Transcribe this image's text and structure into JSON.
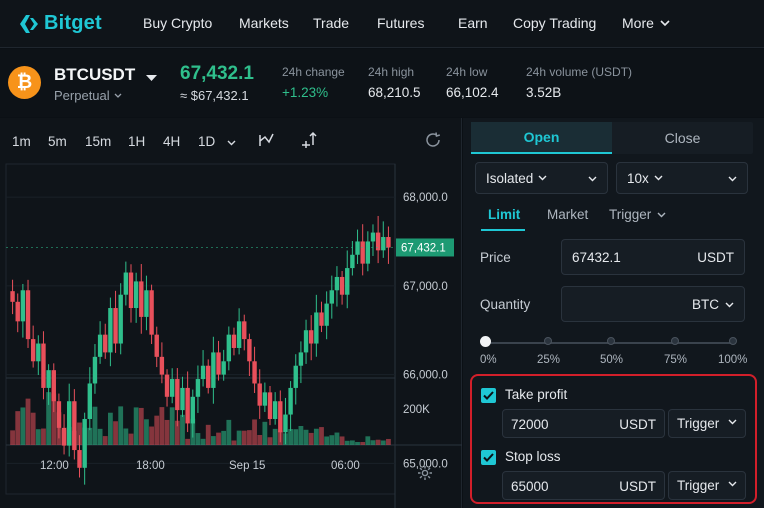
{
  "nav": {
    "logo_text": "Bitget",
    "items": [
      "Buy Crypto",
      "Markets",
      "Trade",
      "Futures",
      "Earn",
      "Copy Trading",
      "More"
    ]
  },
  "ticker": {
    "coin_glyph": "₿",
    "pair": "BTCUSDT",
    "contract": "Perpetual",
    "last_price": "67,432.1",
    "approx_price": "≈ $67,432.1",
    "stats": [
      {
        "label": "24h change",
        "value": "+1.23%",
        "up": true
      },
      {
        "label": "24h high",
        "value": "68,210.5",
        "up": false
      },
      {
        "label": "24h low",
        "value": "66,102.4",
        "up": false
      },
      {
        "label": "24h volume (USDT)",
        "value": "3.52B",
        "up": false
      }
    ]
  },
  "chart": {
    "timeframes": [
      "1m",
      "5m",
      "15m",
      "1H",
      "4H",
      "1D"
    ],
    "price_ticks": [
      {
        "label": "68,000.0",
        "value": 68000
      },
      {
        "label": "67,000.0",
        "value": 67000
      },
      {
        "label": "66,000.0",
        "value": 66000
      },
      {
        "label": "65,000.0",
        "value": 65000
      }
    ],
    "current_price_label": "67,432.1",
    "current_price": 67432.1,
    "volume_tick": "200K",
    "time_ticks": [
      "12:00",
      "18:00",
      "Sep 15",
      "06:00"
    ],
    "up_color": "#2fbf8c",
    "down_color": "#e8505b"
  },
  "chart_data": {
    "type": "candlestick",
    "yrange": [
      64700,
      68350
    ],
    "closes": [
      66820,
      66600,
      66950,
      66400,
      66150,
      66350,
      65850,
      66050,
      65700,
      65400,
      65200,
      65700,
      65150,
      64950,
      65500,
      65900,
      66200,
      66450,
      66250,
      66750,
      66350,
      66900,
      67150,
      66750,
      67050,
      66650,
      66950,
      66450,
      66200,
      66000,
      65750,
      65950,
      65600,
      65850,
      65450,
      65750,
      65950,
      66100,
      65850,
      66250,
      66000,
      66150,
      66450,
      66300,
      66600,
      66400,
      66150,
      65900,
      65650,
      65800,
      65500,
      65700,
      65350,
      65550,
      65850,
      66100,
      66250,
      66500,
      66350,
      66700,
      66550,
      66800,
      66950,
      67100,
      66900,
      67200,
      67350,
      67500,
      67250,
      67500,
      67600,
      67400,
      67550,
      67432
    ]
  },
  "panel": {
    "tabs": [
      "Open",
      "Close"
    ],
    "margin_mode": "Isolated",
    "leverage": "10x",
    "order_types": [
      "Limit",
      "Market",
      "Trigger"
    ],
    "price_label": "Price",
    "price_value": "67432.1",
    "price_unit": "USDT",
    "quantity_label": "Quantity",
    "quantity_unit": "BTC",
    "slider_value": 0,
    "percents": [
      "0%",
      "25%",
      "50%",
      "75%",
      "100%"
    ],
    "take_profit": {
      "label": "Take profit",
      "value": "72000",
      "unit": "USDT",
      "trigger": "Trigger"
    },
    "stop_loss": {
      "label": "Stop loss",
      "value": "65000",
      "unit": "USDT",
      "trigger": "Trigger"
    },
    "accent": "#1fc7d4",
    "highlight": "#d21f2a"
  }
}
